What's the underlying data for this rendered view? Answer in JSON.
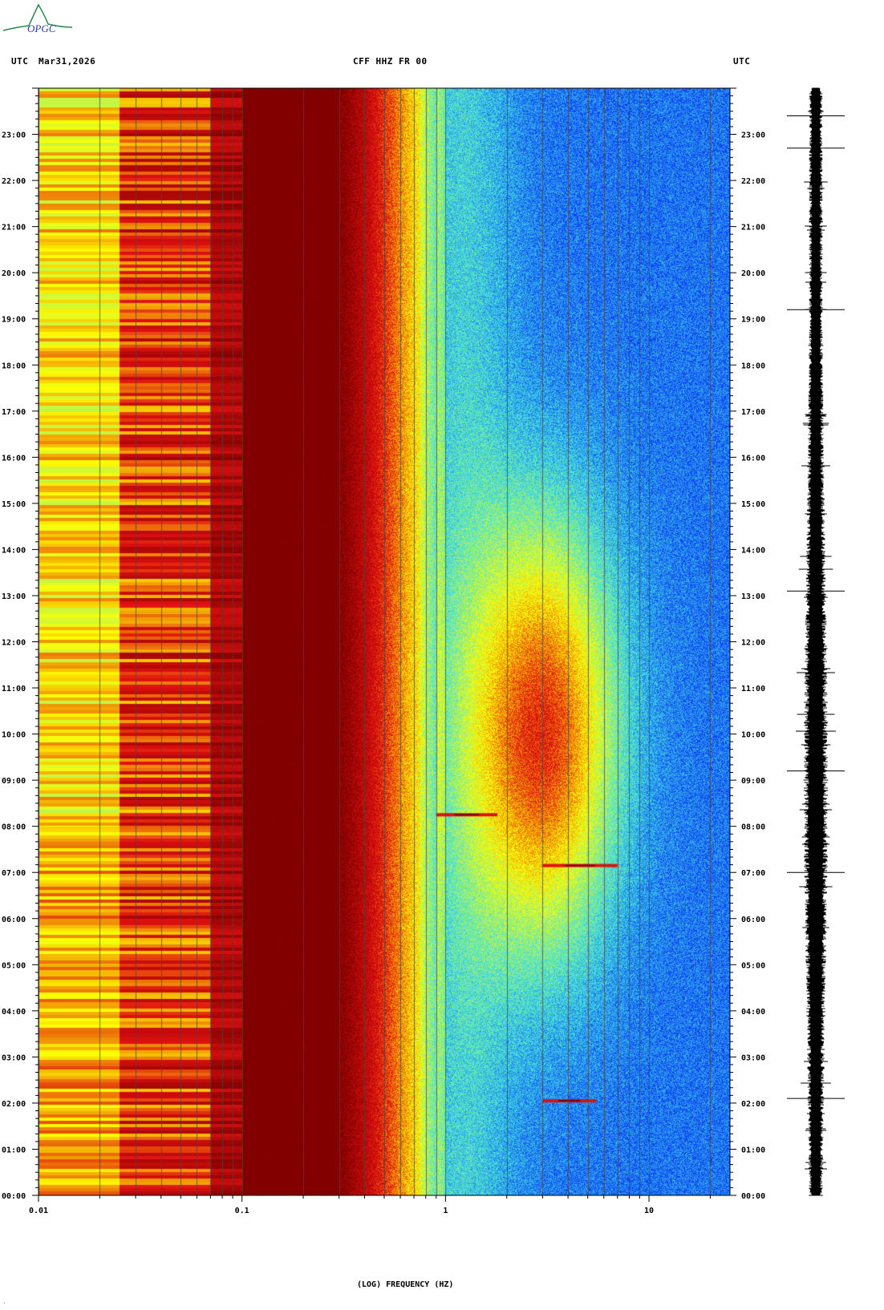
{
  "logo": {
    "text": "OPGC"
  },
  "header": {
    "left_tz": "UTC",
    "date": "Mar31,2026",
    "station": "CFF HHZ FR 00",
    "right_tz": "UTC"
  },
  "colors": {
    "darkred": "#800000",
    "red": "#e01010",
    "yellow": "#ffff00",
    "cyan": "#40e0e0",
    "blue": "#0010ff"
  },
  "chart_data": {
    "type": "heatmap",
    "title": "CFF HHZ FR 00",
    "xlabel": "(LOG) FREQUENCY (HZ)",
    "ylabel": "",
    "x_scale": "log",
    "xlim": [
      0.01,
      25
    ],
    "ylim_hours": [
      0,
      24
    ],
    "x_ticks": [
      {
        "value": 0.01,
        "label": "0.01"
      },
      {
        "value": 0.1,
        "label": "0.1"
      },
      {
        "value": 1,
        "label": "1"
      },
      {
        "value": 10,
        "label": "10"
      }
    ],
    "y_ticks_hours": [
      0,
      1,
      2,
      3,
      4,
      5,
      6,
      7,
      8,
      9,
      10,
      11,
      12,
      13,
      14,
      15,
      16,
      17,
      18,
      19,
      20,
      21,
      22,
      23
    ],
    "y_tick_labels": [
      "00:00",
      "01:00",
      "02:00",
      "03:00",
      "04:00",
      "05:00",
      "06:00",
      "07:00",
      "08:00",
      "09:00",
      "10:00",
      "11:00",
      "12:00",
      "13:00",
      "14:00",
      "15:00",
      "16:00",
      "17:00",
      "18:00",
      "19:00",
      "20:00",
      "21:00",
      "22:00",
      "23:00"
    ],
    "colormap": [
      "#0010ff",
      "#40e0e0",
      "#ffff00",
      "#e01010",
      "#800000"
    ],
    "events": [
      {
        "time_hours": 2.05,
        "freq_hz": [
          3.0,
          5.5
        ],
        "label": ""
      },
      {
        "time_hours": 7.15,
        "freq_hz": [
          3.0,
          7.0
        ],
        "label": ""
      },
      {
        "time_hours": 8.25,
        "freq_hz": [
          0.9,
          1.8
        ],
        "label": ""
      }
    ],
    "seismogram": {
      "position": "right",
      "big_spikes_hours": [
        2.1,
        7.0,
        9.2,
        13.1,
        19.2,
        22.7,
        23.4
      ]
    }
  }
}
